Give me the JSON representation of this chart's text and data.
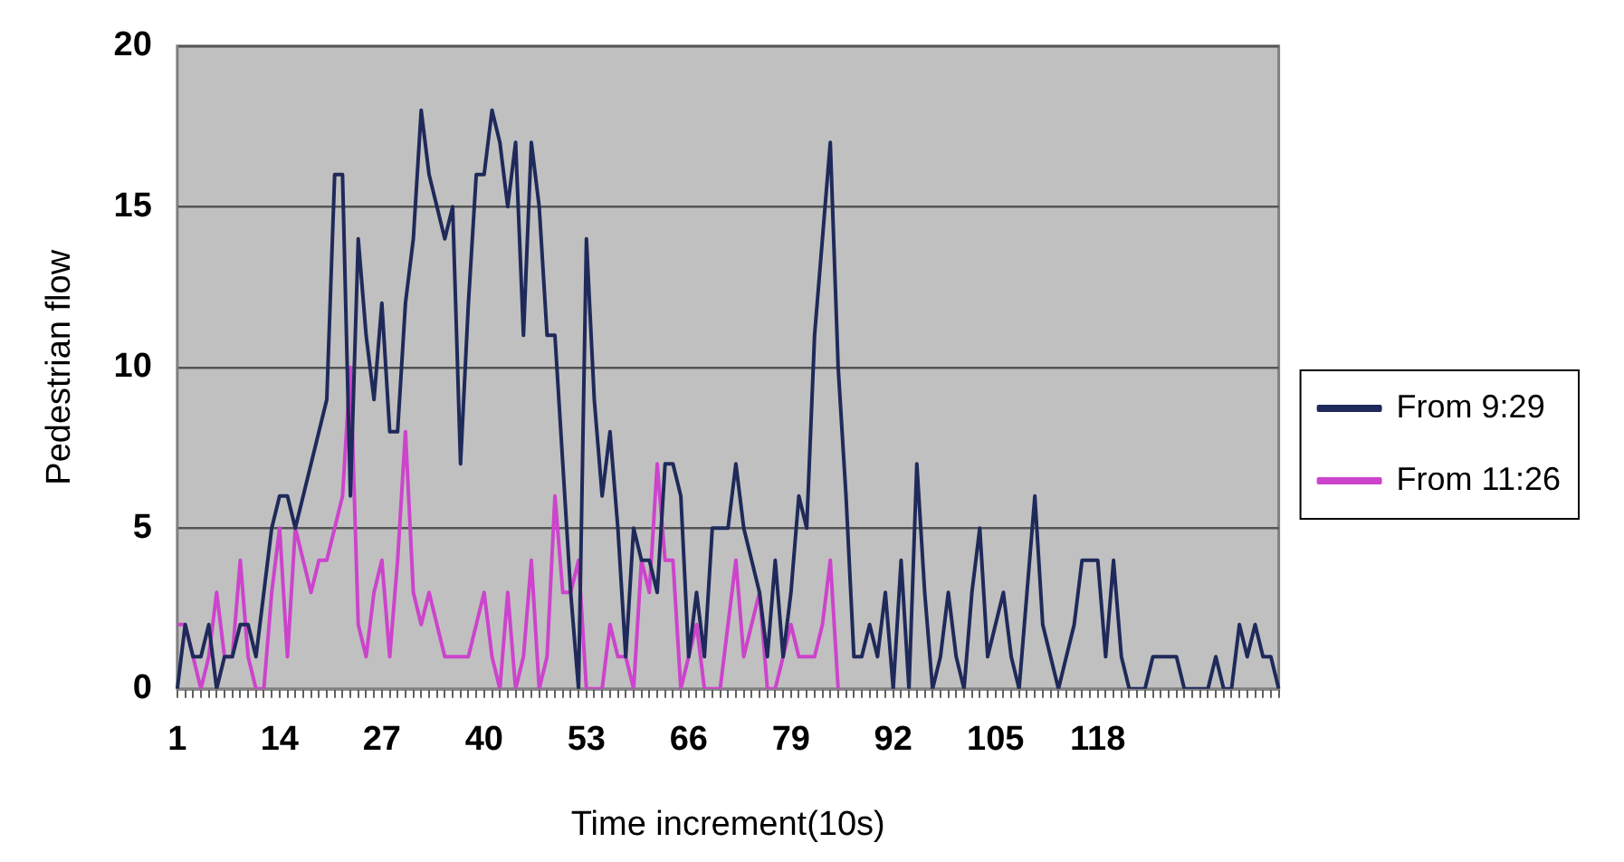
{
  "chart_data": {
    "type": "line",
    "xlabel": "Time increment(10s)",
    "ylabel": "Pedestrian flow",
    "categories": [
      "1",
      null,
      null,
      null,
      null,
      null,
      null,
      null,
      null,
      null,
      null,
      null,
      null,
      "14",
      null,
      null,
      null,
      null,
      null,
      null,
      null,
      null,
      null,
      null,
      null,
      null,
      "27",
      null,
      null,
      null,
      null,
      null,
      null,
      null,
      null,
      null,
      null,
      null,
      null,
      "40",
      null,
      null,
      null,
      null,
      null,
      null,
      null,
      null,
      null,
      null,
      null,
      null,
      "53",
      null,
      null,
      null,
      null,
      null,
      null,
      null,
      null,
      null,
      null,
      null,
      null,
      "66",
      null,
      null,
      null,
      null,
      null,
      null,
      null,
      null,
      null,
      null,
      null,
      null,
      "79",
      null,
      null,
      null,
      null,
      null,
      null,
      null,
      null,
      null,
      null,
      null,
      null,
      "92",
      null,
      null,
      null,
      null,
      null,
      null,
      null,
      null,
      null,
      null,
      null,
      null,
      "105",
      null,
      null,
      null,
      null,
      null,
      null,
      null,
      null,
      null,
      null,
      null,
      null,
      "118",
      null,
      null,
      null,
      null,
      null,
      null,
      null,
      null,
      null,
      null,
      null,
      null,
      null,
      null,
      null,
      null,
      null,
      null,
      null,
      null,
      null,
      null,
      null
    ],
    "series": [
      {
        "name": "From 9:29",
        "color": "#1f2a5a",
        "values": [
          0,
          2,
          1,
          1,
          2,
          0,
          1,
          1,
          2,
          2,
          1,
          3,
          5,
          6,
          6,
          5,
          6,
          7,
          8,
          9,
          16,
          16,
          6,
          14,
          11,
          9,
          12,
          8,
          8,
          12,
          14,
          18,
          16,
          15,
          14,
          15,
          7,
          12,
          16,
          16,
          18,
          17,
          15,
          17,
          11,
          17,
          15,
          11,
          11,
          7,
          3,
          0,
          14,
          9,
          6,
          8,
          5,
          1,
          5,
          4,
          4,
          3,
          7,
          7,
          6,
          1,
          3,
          1,
          5,
          5,
          5,
          7,
          5,
          4,
          3,
          1,
          4,
          1,
          3,
          6,
          5,
          11,
          14,
          17,
          10,
          6,
          1,
          1,
          2,
          1,
          3,
          0,
          4,
          0,
          7,
          3,
          0,
          1,
          3,
          1,
          0,
          3,
          5,
          1,
          2,
          3,
          1,
          0,
          3,
          6,
          2,
          1,
          0,
          1,
          2,
          4,
          4,
          4,
          1,
          4,
          1,
          0,
          0,
          0,
          1,
          1,
          1,
          1,
          0,
          0,
          0,
          0,
          1,
          0,
          0,
          2,
          1,
          2,
          1,
          1,
          0
        ]
      },
      {
        "name": "From 11:26",
        "color": "#cc44cc",
        "values": [
          2,
          2,
          1,
          0,
          1,
          3,
          1,
          1,
          4,
          1,
          0,
          0,
          3,
          5,
          1,
          5,
          4,
          3,
          4,
          4,
          5,
          6,
          10,
          2,
          1,
          3,
          4,
          1,
          4,
          8,
          3,
          2,
          3,
          2,
          1,
          1,
          1,
          1,
          2,
          3,
          1,
          0,
          3,
          0,
          1,
          4,
          0,
          1,
          6,
          3,
          3,
          4,
          0,
          0,
          0,
          2,
          1,
          1,
          0,
          4,
          3,
          7,
          4,
          4,
          0,
          1,
          2,
          0,
          0,
          0,
          2,
          4,
          1,
          2,
          3,
          0,
          0,
          1,
          2,
          1,
          1,
          1,
          2,
          4,
          0,
          null,
          null,
          null,
          null,
          null,
          null,
          null,
          null,
          null,
          null,
          null,
          null,
          null,
          null,
          null,
          null,
          null,
          null,
          null,
          null,
          null,
          null,
          null,
          null,
          null,
          null,
          null,
          null,
          null,
          null,
          null,
          null,
          null,
          null,
          null,
          null,
          null,
          null,
          null,
          null,
          null,
          null,
          null,
          null,
          null,
          null,
          null,
          null,
          null,
          null,
          null,
          null,
          null,
          null,
          null,
          null
        ]
      }
    ],
    "ylim": [
      0,
      20
    ],
    "yticks": [
      0,
      5,
      10,
      15,
      20
    ],
    "grid": "y",
    "legend": "right",
    "marker": "none",
    "line_style": "solid"
  }
}
